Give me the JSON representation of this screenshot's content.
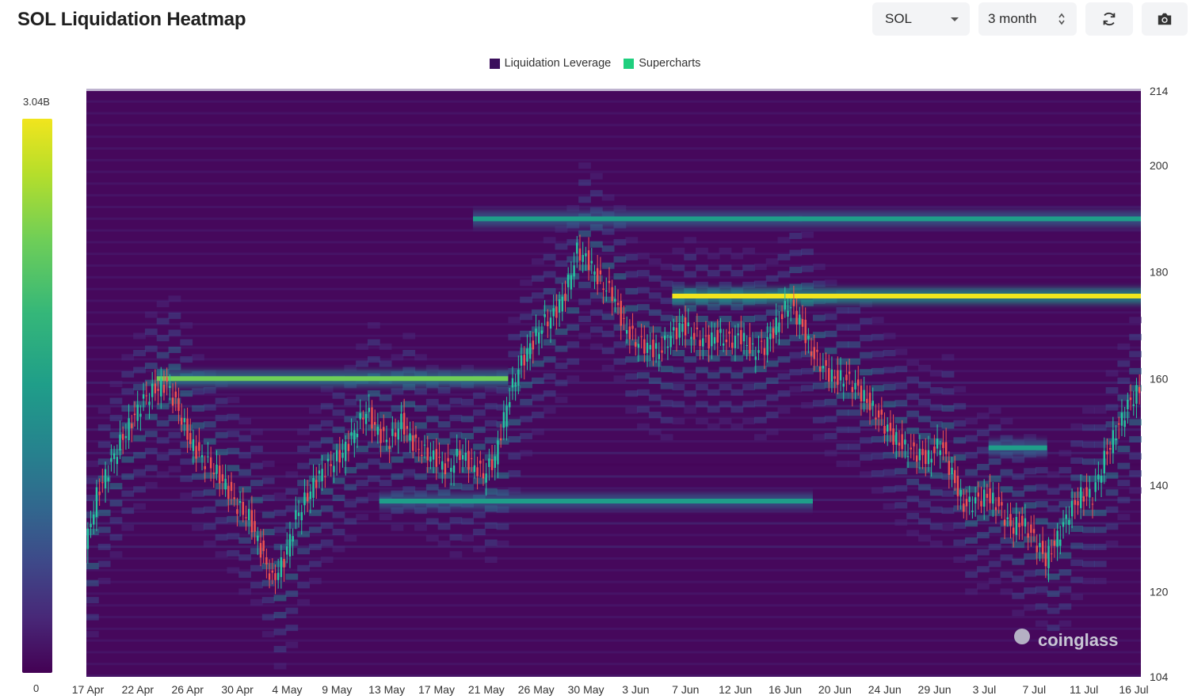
{
  "header": {
    "title": "SOL Liquidation Heatmap",
    "symbol_select": "SOL",
    "range_select": "3 month",
    "refresh_icon": "refresh-icon",
    "camera_icon": "camera-icon"
  },
  "colors": {
    "liquidation_leverage": "#3b0f5c",
    "supercharts": "#1fcf7e",
    "background_low": "#46085c",
    "high": "#f1e51d",
    "candle_up": "#26c6a0",
    "candle_down": "#ef5350"
  },
  "colorbar": {
    "max_label": "3.04B",
    "min_label": "0"
  },
  "watermark": "coinglass",
  "chart_data": {
    "type": "heatmap",
    "title": "SOL Liquidation Heatmap",
    "legend": [
      "Liquidation Leverage",
      "Supercharts"
    ],
    "legend_position": "top-center",
    "x_tick_labels": [
      "17 Apr",
      "22 Apr",
      "26 Apr",
      "30 Apr",
      "4 May",
      "9 May",
      "13 May",
      "17 May",
      "21 May",
      "26 May",
      "30 May",
      "3 Jun",
      "7 Jun",
      "12 Jun",
      "16 Jun",
      "20 Jun",
      "24 Jun",
      "29 Jun",
      "3 Jul",
      "7 Jul",
      "11 Jul",
      "16 Jul"
    ],
    "y_tick_labels": [
      "214",
      "200",
      "180",
      "160",
      "140",
      "120",
      "104"
    ],
    "y_ticks": [
      214,
      200,
      180,
      160,
      140,
      120,
      104
    ],
    "ylim": [
      104,
      214
    ],
    "xlim_days": [
      0,
      90
    ],
    "price_path": [
      [
        0,
        128
      ],
      [
        1,
        138
      ],
      [
        2,
        143
      ],
      [
        3,
        148
      ],
      [
        4,
        152
      ],
      [
        5,
        156
      ],
      [
        6,
        158
      ],
      [
        7,
        159
      ],
      [
        8,
        154
      ],
      [
        9,
        148
      ],
      [
        10,
        145
      ],
      [
        11,
        143
      ],
      [
        12,
        140
      ],
      [
        13,
        136
      ],
      [
        14,
        134
      ],
      [
        15,
        128
      ],
      [
        16,
        122
      ],
      [
        17,
        126
      ],
      [
        18,
        134
      ],
      [
        19,
        138
      ],
      [
        20,
        142
      ],
      [
        21,
        144
      ],
      [
        22,
        146
      ],
      [
        23,
        150
      ],
      [
        24,
        154
      ],
      [
        25,
        150
      ],
      [
        26,
        148
      ],
      [
        27,
        152
      ],
      [
        28,
        148
      ],
      [
        29,
        146
      ],
      [
        30,
        145
      ],
      [
        31,
        143
      ],
      [
        32,
        146
      ],
      [
        33,
        144
      ],
      [
        34,
        142
      ],
      [
        35,
        145
      ],
      [
        36,
        155
      ],
      [
        37,
        162
      ],
      [
        38,
        166
      ],
      [
        39,
        170
      ],
      [
        40,
        172
      ],
      [
        41,
        176
      ],
      [
        42,
        184
      ],
      [
        43,
        182
      ],
      [
        44,
        178
      ],
      [
        45,
        176
      ],
      [
        46,
        170
      ],
      [
        47,
        167
      ],
      [
        48,
        166
      ],
      [
        49,
        165
      ],
      [
        50,
        168
      ],
      [
        51,
        170
      ],
      [
        52,
        168
      ],
      [
        53,
        167
      ],
      [
        54,
        168
      ],
      [
        55,
        167
      ],
      [
        56,
        168
      ],
      [
        57,
        165
      ],
      [
        58,
        166
      ],
      [
        59,
        170
      ],
      [
        60,
        174
      ],
      [
        61,
        171
      ],
      [
        62,
        165
      ],
      [
        63,
        162
      ],
      [
        64,
        160
      ],
      [
        65,
        160
      ],
      [
        66,
        158
      ],
      [
        67,
        155
      ],
      [
        68,
        152
      ],
      [
        69,
        149
      ],
      [
        70,
        147
      ],
      [
        71,
        146
      ],
      [
        72,
        145
      ],
      [
        73,
        148
      ],
      [
        74,
        142
      ],
      [
        75,
        136
      ],
      [
        76,
        137
      ],
      [
        77,
        138
      ],
      [
        78,
        136
      ],
      [
        79,
        132
      ],
      [
        80,
        133
      ],
      [
        81,
        130
      ],
      [
        82,
        126
      ],
      [
        83,
        130
      ],
      [
        84,
        135
      ],
      [
        85,
        138
      ],
      [
        86,
        138
      ],
      [
        87,
        145
      ],
      [
        88,
        150
      ],
      [
        89,
        155
      ],
      [
        90,
        158
      ]
    ],
    "bands": [
      {
        "price": 175.5,
        "x_from": 50,
        "x_to": 90,
        "intensity": 1.0
      },
      {
        "price": 160.0,
        "x_from": 6,
        "x_to": 36,
        "intensity": 0.78
      },
      {
        "price": 137.0,
        "x_from": 25,
        "x_to": 62,
        "intensity": 0.6
      },
      {
        "price": 190.0,
        "x_from": 33,
        "x_to": 90,
        "intensity": 0.5
      },
      {
        "price": 147.0,
        "x_from": 77,
        "x_to": 82,
        "intensity": 0.6
      }
    ]
  }
}
